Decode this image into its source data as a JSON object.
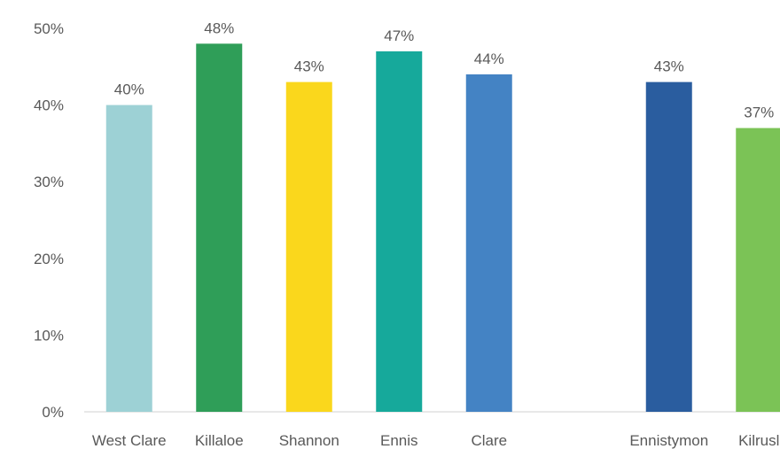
{
  "chart_data": {
    "type": "bar",
    "categories": [
      "West Clare",
      "Killaloe",
      "Shannon",
      "Ennis",
      "Clare",
      "",
      "Ennistymon",
      "Kilrusl"
    ],
    "values": [
      40,
      48,
      43,
      47,
      44,
      null,
      43,
      37
    ],
    "data_labels": [
      "40%",
      "48%",
      "43%",
      "47%",
      "44%",
      "",
      "43%",
      "37%"
    ],
    "colors": [
      "#9dd1d5",
      "#2f9e58",
      "#fad71c",
      "#16a99b",
      "#4483c4",
      "",
      "#2a5d9f",
      "#7bc356"
    ],
    "y_ticks": [
      "0%",
      "10%",
      "20%",
      "30%",
      "40%",
      "50%"
    ],
    "ylim": [
      0,
      50
    ],
    "grid": false,
    "axis_color": "#d9d9d9"
  }
}
